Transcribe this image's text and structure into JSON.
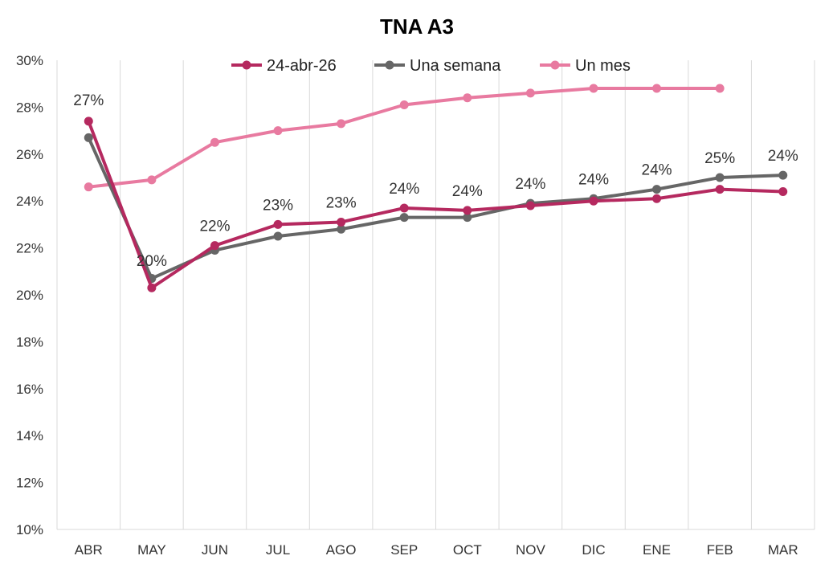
{
  "chart_data": {
    "type": "line",
    "title": "TNA A3",
    "xlabel": "",
    "ylabel": "",
    "categories": [
      "ABR",
      "MAY",
      "JUN",
      "JUL",
      "AGO",
      "SEP",
      "OCT",
      "NOV",
      "DIC",
      "ENE",
      "FEB",
      "MAR"
    ],
    "ylim": [
      10,
      30
    ],
    "yticks": [
      "10%",
      "12%",
      "14%",
      "16%",
      "18%",
      "20%",
      "22%",
      "24%",
      "26%",
      "28%",
      "30%"
    ],
    "grid": "vertical",
    "legend_position": "top",
    "series": [
      {
        "name": "24-abr-26",
        "color": "#B5295F",
        "values": [
          27.4,
          20.3,
          22.1,
          23.0,
          23.1,
          23.7,
          23.6,
          23.8,
          24.0,
          24.1,
          24.5,
          24.4
        ],
        "data_labels": [
          "27%",
          "20%",
          "22%",
          "23%",
          "23%",
          "24%",
          "24%",
          "24%",
          "24%",
          "24%",
          "25%",
          "24%"
        ]
      },
      {
        "name": "Una semana",
        "color": "#666666",
        "values": [
          26.7,
          20.7,
          21.9,
          22.5,
          22.8,
          23.3,
          23.3,
          23.9,
          24.1,
          24.5,
          25.0,
          25.1
        ]
      },
      {
        "name": "Un mes",
        "color": "#E87AA0",
        "values": [
          24.6,
          24.9,
          26.5,
          27.0,
          27.3,
          28.1,
          28.4,
          28.6,
          28.8,
          28.8,
          28.8,
          null
        ]
      }
    ]
  }
}
